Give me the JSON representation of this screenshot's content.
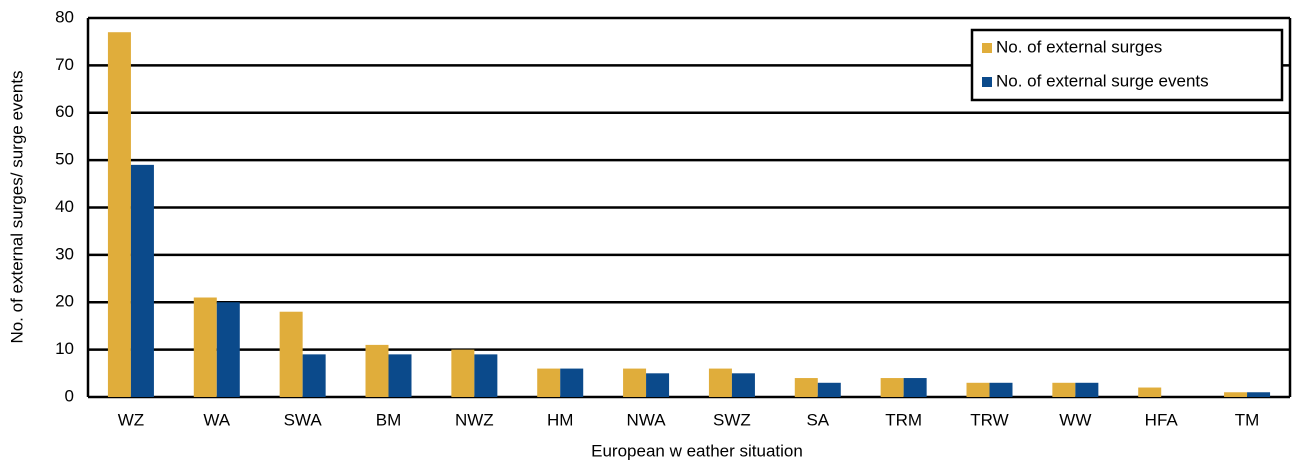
{
  "chart_data": {
    "type": "bar",
    "x_label": "European w eather situation",
    "y_label": "No. of external surges/ surge events",
    "categories": [
      "WZ",
      "WA",
      "SWA",
      "BM",
      "NWZ",
      "HM",
      "NWA",
      "SWZ",
      "SA",
      "TRM",
      "TRW",
      "WW",
      "HFA",
      "TM"
    ],
    "series": [
      {
        "name": "No. of external surges",
        "color": "#e0ad3b",
        "values": [
          77,
          21,
          18,
          11,
          10,
          6,
          6,
          6,
          4,
          4,
          3,
          3,
          2,
          1
        ]
      },
      {
        "name": "No. of external surge events",
        "color": "#0b4a8b",
        "values": [
          49,
          20,
          9,
          9,
          9,
          6,
          5,
          5,
          3,
          4,
          3,
          3,
          0,
          1
        ]
      }
    ],
    "ylim": [
      0,
      80
    ],
    "yticks": [
      0,
      10,
      20,
      30,
      40,
      50,
      60,
      70,
      80
    ],
    "grid": true,
    "legend": "top-right"
  }
}
